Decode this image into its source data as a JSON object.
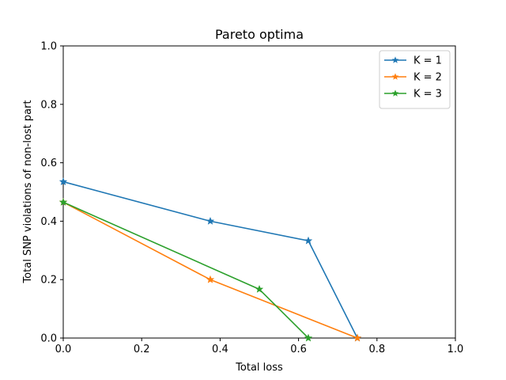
{
  "chart_data": {
    "type": "line",
    "title": "Pareto optima",
    "xlabel": "Total loss",
    "ylabel": "Total SNP violations of non-lost part",
    "xlim": [
      0,
      1
    ],
    "ylim": [
      0,
      1
    ],
    "xticks": [
      "0.0",
      "0.2",
      "0.4",
      "0.6",
      "0.8",
      "1.0"
    ],
    "yticks": [
      "0.0",
      "0.2",
      "0.4",
      "0.6",
      "0.8",
      "1.0"
    ],
    "grid": false,
    "legend_position": "top-right",
    "marker": "star",
    "series": [
      {
        "name": "K = 1",
        "color": "#1f77b4",
        "x": [
          0.0,
          0.375,
          0.625,
          0.75
        ],
        "y": [
          0.535,
          0.4,
          0.333,
          0.0
        ]
      },
      {
        "name": "K = 2",
        "color": "#ff7f0e",
        "x": [
          0.0,
          0.375,
          0.75
        ],
        "y": [
          0.465,
          0.2,
          0.0
        ]
      },
      {
        "name": "K = 3",
        "color": "#2ca02c",
        "x": [
          0.0,
          0.5,
          0.625
        ],
        "y": [
          0.465,
          0.167,
          0.0
        ]
      }
    ]
  }
}
